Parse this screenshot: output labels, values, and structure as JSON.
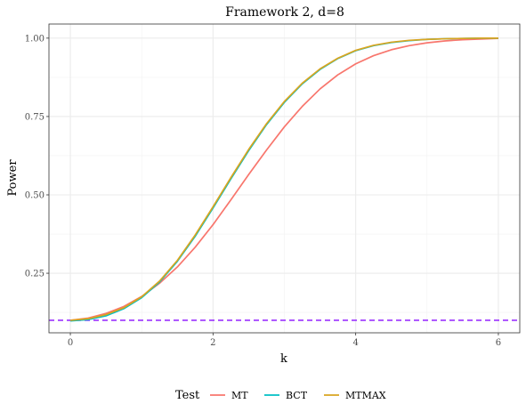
{
  "chart_data": {
    "type": "line",
    "title": "Framework 2, d=8",
    "xlabel": "k",
    "ylabel": "Power",
    "xlim": [
      -0.3,
      6.3
    ],
    "ylim": [
      0.06,
      1.045
    ],
    "x_ticks": [
      0,
      2,
      4,
      6
    ],
    "y_ticks": [
      0.25,
      0.5,
      0.75,
      1.0
    ],
    "x_tick_labels": [
      "0",
      "2",
      "4",
      "6"
    ],
    "y_tick_labels": [
      "0.25",
      "0.50",
      "0.75",
      "1.00"
    ],
    "grid": true,
    "legend": {
      "title": "Test",
      "position": "bottom"
    },
    "reference_line": {
      "y": 0.1,
      "style": "dashed",
      "color": "#9B30FF"
    },
    "x": [
      0,
      0.25,
      0.5,
      0.75,
      1.0,
      1.25,
      1.5,
      1.75,
      2.0,
      2.25,
      2.5,
      2.75,
      3.0,
      3.25,
      3.5,
      3.75,
      4.0,
      4.25,
      4.5,
      4.75,
      5.0,
      5.25,
      5.5,
      5.75,
      6.0
    ],
    "series": [
      {
        "name": "MT",
        "color": "#F8766D",
        "values": [
          0.1,
          0.107,
          0.122,
          0.144,
          0.176,
          0.218,
          0.27,
          0.333,
          0.405,
          0.484,
          0.565,
          0.643,
          0.717,
          0.782,
          0.838,
          0.883,
          0.918,
          0.944,
          0.963,
          0.976,
          0.985,
          0.991,
          0.995,
          0.997,
          0.999
        ]
      },
      {
        "name": "BCT",
        "color": "#00BFC4",
        "values": [
          0.098,
          0.102,
          0.114,
          0.137,
          0.172,
          0.222,
          0.288,
          0.368,
          0.458,
          0.551,
          0.641,
          0.724,
          0.795,
          0.854,
          0.9,
          0.935,
          0.96,
          0.976,
          0.986,
          0.992,
          0.996,
          0.998,
          0.999,
          1.0,
          1.0
        ]
      },
      {
        "name": "MTMAX",
        "color": "#DAA520",
        "values": [
          0.1,
          0.105,
          0.118,
          0.14,
          0.175,
          0.225,
          0.291,
          0.372,
          0.462,
          0.555,
          0.645,
          0.727,
          0.798,
          0.856,
          0.902,
          0.936,
          0.961,
          0.977,
          0.987,
          0.993,
          0.996,
          0.998,
          0.999,
          1.0,
          1.0
        ]
      }
    ]
  }
}
